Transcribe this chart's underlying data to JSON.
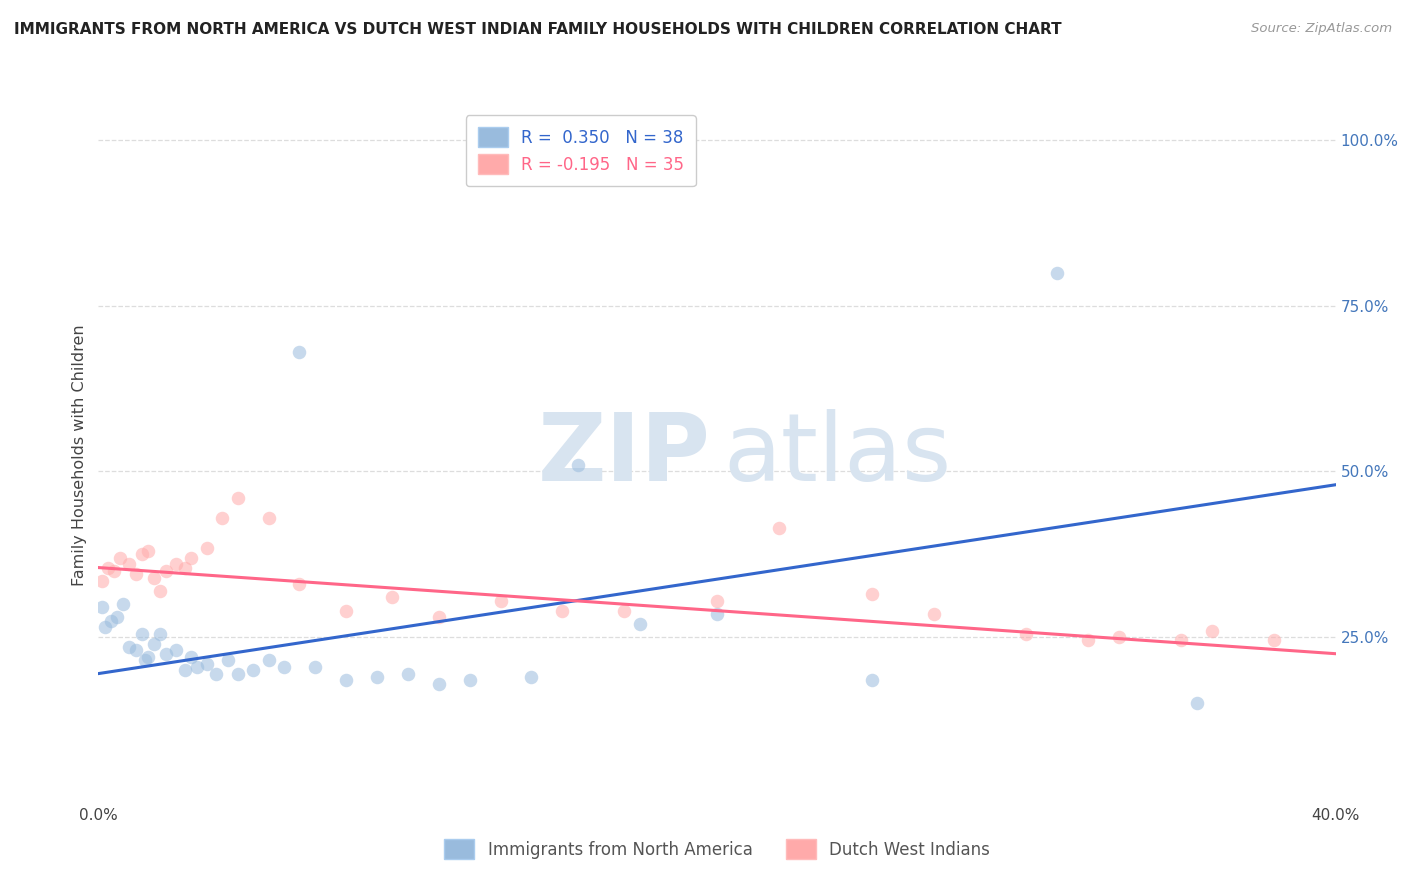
{
  "title": "IMMIGRANTS FROM NORTH AMERICA VS DUTCH WEST INDIAN FAMILY HOUSEHOLDS WITH CHILDREN CORRELATION CHART",
  "source": "Source: ZipAtlas.com",
  "ylabel": "Family Households with Children",
  "xlim": [
    0.0,
    0.4
  ],
  "ylim": [
    0.0,
    1.05
  ],
  "xtick_positions": [
    0.0,
    0.05,
    0.1,
    0.15,
    0.2,
    0.25,
    0.3,
    0.35,
    0.4
  ],
  "xticklabels": [
    "0.0%",
    "",
    "",
    "",
    "",
    "",
    "",
    "",
    "40.0%"
  ],
  "ytick_positions": [
    0.0,
    0.25,
    0.5,
    0.75,
    1.0
  ],
  "yticklabels_right": [
    "",
    "25.0%",
    "50.0%",
    "75.0%",
    "100.0%"
  ],
  "blue_color": "#99BBDD",
  "pink_color": "#FFAAAA",
  "trendline_blue_color": "#3366CC",
  "trendline_pink_color": "#FF6688",
  "legend_label_blue": "Immigrants from North America",
  "legend_label_pink": "Dutch West Indians",
  "legend_blue_text": "R =  0.350   N = 38",
  "legend_pink_text": "R = -0.195   N = 35",
  "blue_points_x": [
    0.001,
    0.002,
    0.004,
    0.006,
    0.008,
    0.01,
    0.012,
    0.014,
    0.015,
    0.016,
    0.018,
    0.02,
    0.022,
    0.025,
    0.028,
    0.03,
    0.032,
    0.035,
    0.038,
    0.042,
    0.045,
    0.05,
    0.055,
    0.06,
    0.065,
    0.07,
    0.08,
    0.09,
    0.1,
    0.11,
    0.12,
    0.14,
    0.155,
    0.175,
    0.2,
    0.25,
    0.31,
    0.355
  ],
  "blue_points_y": [
    0.295,
    0.265,
    0.275,
    0.28,
    0.3,
    0.235,
    0.23,
    0.255,
    0.215,
    0.22,
    0.24,
    0.255,
    0.225,
    0.23,
    0.2,
    0.22,
    0.205,
    0.21,
    0.195,
    0.215,
    0.195,
    0.2,
    0.215,
    0.205,
    0.68,
    0.205,
    0.185,
    0.19,
    0.195,
    0.18,
    0.185,
    0.19,
    0.51,
    0.27,
    0.285,
    0.185,
    0.8,
    0.15
  ],
  "pink_points_x": [
    0.001,
    0.003,
    0.005,
    0.007,
    0.01,
    0.012,
    0.014,
    0.016,
    0.018,
    0.02,
    0.022,
    0.025,
    0.028,
    0.03,
    0.035,
    0.04,
    0.045,
    0.055,
    0.065,
    0.08,
    0.095,
    0.11,
    0.13,
    0.15,
    0.17,
    0.2,
    0.22,
    0.25,
    0.27,
    0.3,
    0.32,
    0.33,
    0.35,
    0.36,
    0.38
  ],
  "pink_points_y": [
    0.335,
    0.355,
    0.35,
    0.37,
    0.36,
    0.345,
    0.375,
    0.38,
    0.34,
    0.32,
    0.35,
    0.36,
    0.355,
    0.37,
    0.385,
    0.43,
    0.46,
    0.43,
    0.33,
    0.29,
    0.31,
    0.28,
    0.305,
    0.29,
    0.29,
    0.305,
    0.415,
    0.315,
    0.285,
    0.255,
    0.245,
    0.25,
    0.245,
    0.26,
    0.245
  ],
  "blue_trendline_x": [
    0.0,
    0.4
  ],
  "blue_trendline_y": [
    0.195,
    0.48
  ],
  "pink_trendline_x": [
    0.0,
    0.4
  ],
  "pink_trendline_y": [
    0.355,
    0.225
  ],
  "marker_size": 95,
  "marker_alpha": 0.55,
  "grid_color": "#DDDDDD",
  "bg_color": "#FFFFFF",
  "watermark_zip_color": "#D8E4F0",
  "watermark_atlas_color": "#D8E4F0"
}
